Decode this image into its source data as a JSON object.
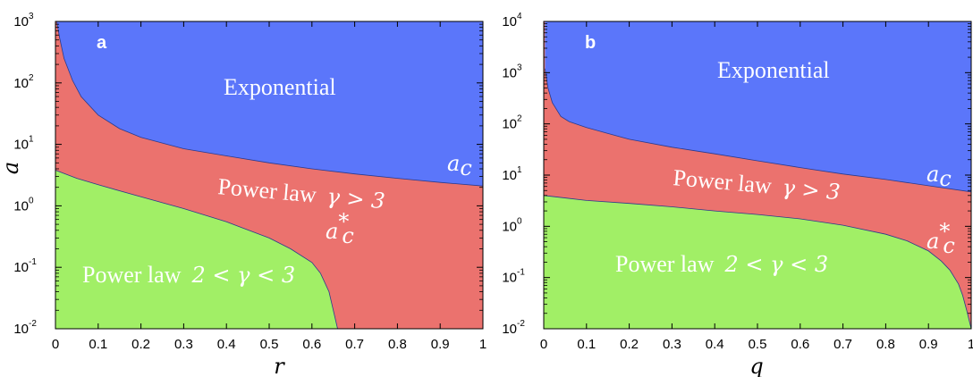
{
  "colors": {
    "exponential": "#5b76fa",
    "power_law_high": "#eb726e",
    "power_law_low": "#a1ef66",
    "boundary": "#2a3a8c"
  },
  "chart_data": [
    {
      "type": "area",
      "panel": "a",
      "xlabel": "r",
      "ylabel": "a",
      "xlim": [
        0,
        1
      ],
      "ylim": [
        0.01,
        1000
      ],
      "y_scale": "log",
      "grid": false,
      "x_ticks": [
        "0",
        "0.1",
        "0.2",
        "0.3",
        "0.4",
        "0.5",
        "0.6",
        "0.7",
        "0.8",
        "0.9",
        "1"
      ],
      "y_ticks": [
        {
          "base": "10",
          "exp": "-2",
          "value": 0.01
        },
        {
          "base": "10",
          "exp": "-1",
          "value": 0.1
        },
        {
          "base": "10",
          "exp": "0",
          "value": 1
        },
        {
          "base": "10",
          "exp": "1",
          "value": 10
        },
        {
          "base": "10",
          "exp": "2",
          "value": 100
        },
        {
          "base": "10",
          "exp": "3",
          "value": 1000
        }
      ],
      "regions": [
        {
          "name": "Exponential",
          "label": "Exponential",
          "color_key": "exponential"
        },
        {
          "name": "Power law high",
          "label": "Power law",
          "math": "γ > 3",
          "color_key": "power_law_high"
        },
        {
          "name": "Power law low",
          "label": "Power law",
          "math": "2 < γ < 3",
          "color_key": "power_law_low"
        }
      ],
      "curves": [
        {
          "name": "a_c",
          "label": "a",
          "sub": "c",
          "x": [
            0.003,
            0.01,
            0.02,
            0.04,
            0.06,
            0.1,
            0.15,
            0.2,
            0.3,
            0.4,
            0.5,
            0.6,
            0.7,
            0.8,
            0.9,
            1.0
          ],
          "y": [
            1000,
            530,
            250,
            110,
            60,
            30,
            18,
            13,
            8.5,
            6.5,
            5.0,
            4.0,
            3.3,
            2.8,
            2.4,
            2.1
          ]
        },
        {
          "name": "a_c*",
          "label": "a",
          "sub": "c",
          "sup": "*",
          "x": [
            0.0,
            0.05,
            0.1,
            0.2,
            0.3,
            0.4,
            0.5,
            0.55,
            0.6,
            0.62,
            0.64,
            0.65,
            0.66
          ],
          "y": [
            3.8,
            2.8,
            2.2,
            1.4,
            0.9,
            0.55,
            0.3,
            0.2,
            0.12,
            0.08,
            0.04,
            0.02,
            0.01
          ]
        }
      ]
    },
    {
      "type": "area",
      "panel": "b",
      "xlabel": "q",
      "ylabel": "",
      "xlim": [
        0,
        1
      ],
      "ylim": [
        0.01,
        10000
      ],
      "y_scale": "log",
      "grid": false,
      "x_ticks": [
        "0",
        "0.1",
        "0.2",
        "0.3",
        "0.4",
        "0.5",
        "0.6",
        "0.7",
        "0.8",
        "0.9",
        "1"
      ],
      "y_ticks": [
        {
          "base": "10",
          "exp": "-2",
          "value": 0.01
        },
        {
          "base": "10",
          "exp": "-1",
          "value": 0.1
        },
        {
          "base": "10",
          "exp": "0",
          "value": 1
        },
        {
          "base": "10",
          "exp": "1",
          "value": 10
        },
        {
          "base": "10",
          "exp": "2",
          "value": 100
        },
        {
          "base": "10",
          "exp": "3",
          "value": 1000
        },
        {
          "base": "10",
          "exp": "4",
          "value": 10000
        }
      ],
      "regions": [
        {
          "name": "Exponential",
          "label": "Exponential",
          "color_key": "exponential"
        },
        {
          "name": "Power law high",
          "label": "Power law",
          "math": "γ > 3",
          "color_key": "power_law_high"
        },
        {
          "name": "Power law low",
          "label": "Power law",
          "math": "2 < γ < 3",
          "color_key": "power_law_low"
        }
      ],
      "curves": [
        {
          "name": "a_c",
          "label": "a",
          "sub": "c",
          "x": [
            0.003,
            0.01,
            0.02,
            0.04,
            0.06,
            0.1,
            0.15,
            0.2,
            0.3,
            0.4,
            0.5,
            0.6,
            0.7,
            0.8,
            0.9,
            1.0
          ],
          "y": [
            1200,
            500,
            260,
            140,
            110,
            85,
            65,
            50,
            35,
            26,
            19,
            14,
            10.5,
            8.2,
            6.2,
            4.7
          ]
        },
        {
          "name": "a_c*",
          "label": "a",
          "sub": "c",
          "sup": "*",
          "x": [
            0.0,
            0.1,
            0.2,
            0.3,
            0.4,
            0.5,
            0.6,
            0.7,
            0.8,
            0.85,
            0.9,
            0.93,
            0.95,
            0.97,
            0.98,
            0.99,
            1.0
          ],
          "y": [
            4.0,
            3.2,
            2.8,
            2.4,
            2.0,
            1.7,
            1.4,
            1.05,
            0.7,
            0.52,
            0.33,
            0.21,
            0.14,
            0.075,
            0.045,
            0.022,
            0.01
          ]
        }
      ]
    }
  ]
}
